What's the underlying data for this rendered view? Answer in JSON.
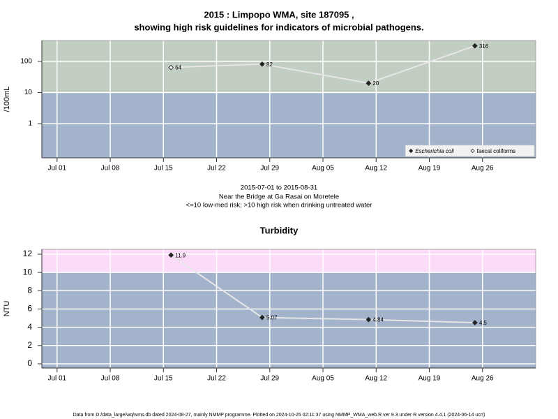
{
  "chart_data": [
    {
      "type": "line",
      "log_y": true,
      "title": [
        "2015 : Limpopo WMA, site 187095 ,",
        "showing high risk guidelines for indicators of microbial pathogens."
      ],
      "y_label": "/100mL",
      "notes": [
        "2015-07-01 to 2015-08-31",
        "Near the Bridge at Ga Rasai on Moretele",
        "<=10 low-med risk; >10 high risk when drinking untreated water"
      ],
      "xlim": [
        "06-29",
        "09-02"
      ],
      "xticks": [
        {
          "value": "07-01",
          "label": "Jul 01"
        },
        {
          "value": "07-08",
          "label": "Jul 08"
        },
        {
          "value": "07-15",
          "label": "Jul 15"
        },
        {
          "value": "07-22",
          "label": "Jul 22"
        },
        {
          "value": "07-29",
          "label": "Jul 29"
        },
        {
          "value": "08-05",
          "label": "Aug 05"
        },
        {
          "value": "08-12",
          "label": "Aug 12"
        },
        {
          "value": "08-19",
          "label": "Aug 19"
        },
        {
          "value": "08-26",
          "label": "Aug 26"
        }
      ],
      "ylim": [
        0.08,
        470
      ],
      "yticks": [
        1,
        10,
        100
      ],
      "grid": true,
      "threshold": 10,
      "band_colors": [
        "#a3b3cb",
        "#c3cec3"
      ],
      "line_color": "#e6e6e6",
      "legend": "bottom-right",
      "series": [
        {
          "name": "Escherichia coli",
          "font_style": "italic",
          "marker": "filled",
          "color": "#222222",
          "x": [
            "07-28",
            "08-11",
            "08-25"
          ],
          "values": [
            82,
            20,
            316
          ]
        },
        {
          "name": "faecal coliforms",
          "font_style": "normal",
          "marker": "open",
          "color": "#222222",
          "x": [
            "07-16"
          ],
          "values": [
            64
          ]
        }
      ]
    },
    {
      "type": "line",
      "log_y": false,
      "title": [
        "Turbidity"
      ],
      "y_label": "NTU",
      "xlim": [
        "06-29",
        "09-02"
      ],
      "xticks": [
        {
          "value": "07-01",
          "label": "Jul 01"
        },
        {
          "value": "07-08",
          "label": "Jul 08"
        },
        {
          "value": "07-15",
          "label": "Jul 15"
        },
        {
          "value": "07-22",
          "label": "Jul 22"
        },
        {
          "value": "07-29",
          "label": "Jul 29"
        },
        {
          "value": "08-05",
          "label": "Aug 05"
        },
        {
          "value": "08-12",
          "label": "Aug 12"
        },
        {
          "value": "08-19",
          "label": "Aug 19"
        },
        {
          "value": "08-26",
          "label": "Aug 26"
        }
      ],
      "ylim": [
        -0.46,
        12.53
      ],
      "yticks": [
        0,
        2,
        4,
        6,
        8,
        10,
        12
      ],
      "grid": true,
      "threshold": 10,
      "band_colors": [
        "#a3b3cb",
        "#fbdcf8"
      ],
      "line_color": "#e6e6e6",
      "series": [
        {
          "marker": "filled",
          "color": "#222222",
          "x": [
            "07-16",
            "07-28",
            "08-11",
            "08-25"
          ],
          "values": [
            11.9,
            5.07,
            4.84,
            4.5
          ]
        }
      ]
    }
  ],
  "footer": "Data from D:/data_large/wq/wms.db dated 2024-08-27, mainly NMMP programme. Plotted on 2024-10-25 02:11:37 using NMMP_WMA_web.R ver 9.3 under R version 4.4.1 (2024-06-14 ucrt)"
}
